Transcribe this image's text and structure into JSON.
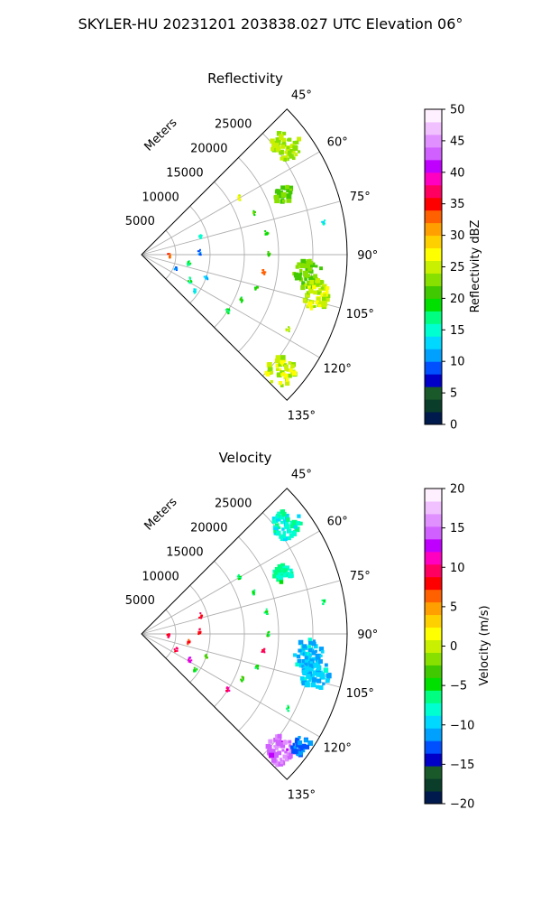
{
  "suptitle": "SKYLER-HU  20231201  203838.027 UTC Elevation 06°",
  "chart_data": [
    {
      "type": "heatmap",
      "projection": "polar-sector",
      "title": "Reflectivity",
      "range_axis_label": "Meters",
      "range_ticks": [
        "5000",
        "10000",
        "15000",
        "20000",
        "25000"
      ],
      "range_tick_values": [
        5000,
        10000,
        15000,
        20000,
        25000
      ],
      "range_max": 30000,
      "azimuth_range": [
        45,
        135
      ],
      "azimuth_ticks": [
        "45°",
        "60°",
        "75°",
        "90°",
        "105°",
        "120°",
        "135°"
      ],
      "azimuth_tick_values": [
        45,
        60,
        75,
        90,
        105,
        120,
        135
      ],
      "grid": true,
      "colorbar": {
        "label": "Reflectivity dBZ",
        "min": 0,
        "max": 50,
        "ticks": [
          "0",
          "5",
          "10",
          "15",
          "20",
          "25",
          "30",
          "35",
          "40",
          "45",
          "50"
        ],
        "tick_values": [
          0,
          5,
          10,
          15,
          20,
          25,
          30,
          35,
          40,
          45,
          50
        ],
        "colors": [
          "#001a4d",
          "#0a3d2a",
          "#1a5a2a",
          "#0000c8",
          "#0050ff",
          "#00a0ff",
          "#00d8ff",
          "#00ffd0",
          "#00ff80",
          "#00e000",
          "#40c800",
          "#88e000",
          "#c8f000",
          "#ffff00",
          "#ffd000",
          "#ffa000",
          "#ff6000",
          "#ff0000",
          "#ff0060",
          "#ff00c0",
          "#c000ff",
          "#d060ff",
          "#e090ff",
          "#f0c0ff",
          "#fff0ff"
        ]
      },
      "echoes": [
        {
          "az": 53,
          "r": 26500,
          "value": 24,
          "size": "large"
        },
        {
          "az": 67,
          "r": 22500,
          "value": 22,
          "size": "medium"
        },
        {
          "az": 80,
          "r": 27000,
          "value": 15,
          "size": "small"
        },
        {
          "az": 97,
          "r": 24500,
          "value": 22,
          "size": "large"
        },
        {
          "az": 103,
          "r": 26000,
          "value": 25,
          "size": "large"
        },
        {
          "az": 117,
          "r": 24000,
          "value": 24,
          "size": "small"
        },
        {
          "az": 130,
          "r": 26500,
          "value": 25,
          "size": "large"
        },
        {
          "az": 60,
          "r": 16500,
          "value": 26,
          "size": "small"
        },
        {
          "az": 70,
          "r": 17500,
          "value": 21,
          "size": "small"
        },
        {
          "az": 80,
          "r": 18500,
          "value": 20,
          "size": "small"
        },
        {
          "az": 90,
          "r": 18500,
          "value": 20,
          "size": "small"
        },
        {
          "az": 98,
          "r": 18000,
          "value": 33,
          "size": "small"
        },
        {
          "az": 106,
          "r": 17500,
          "value": 20,
          "size": "small"
        },
        {
          "az": 114,
          "r": 16000,
          "value": 19,
          "size": "small"
        },
        {
          "az": 123,
          "r": 15000,
          "value": 18,
          "size": "small"
        },
        {
          "az": 73,
          "r": 9000,
          "value": 15,
          "size": "small"
        },
        {
          "az": 88,
          "r": 8500,
          "value": 10,
          "size": "small"
        },
        {
          "az": 92,
          "r": 4000,
          "value": 33,
          "size": "small"
        },
        {
          "az": 100,
          "r": 7000,
          "value": 18,
          "size": "small"
        },
        {
          "az": 110,
          "r": 10000,
          "value": 12,
          "size": "small"
        },
        {
          "az": 114,
          "r": 5500,
          "value": 10,
          "size": "small"
        },
        {
          "az": 118,
          "r": 8000,
          "value": 17,
          "size": "small"
        },
        {
          "az": 124,
          "r": 9500,
          "value": 14,
          "size": "small"
        }
      ]
    },
    {
      "type": "heatmap",
      "projection": "polar-sector",
      "title": "Velocity",
      "range_axis_label": "Meters",
      "range_ticks": [
        "5000",
        "10000",
        "15000",
        "20000",
        "25000"
      ],
      "range_tick_values": [
        5000,
        10000,
        15000,
        20000,
        25000
      ],
      "range_max": 30000,
      "azimuth_range": [
        45,
        135
      ],
      "azimuth_ticks": [
        "45°",
        "60°",
        "75°",
        "90°",
        "105°",
        "120°",
        "135°"
      ],
      "azimuth_tick_values": [
        45,
        60,
        75,
        90,
        105,
        120,
        135
      ],
      "grid": true,
      "colorbar": {
        "label": "Velocity (m/s)",
        "min": -20,
        "max": 20,
        "ticks": [
          "−20",
          "−15",
          "−10",
          "−5",
          "0",
          "5",
          "10",
          "15",
          "20"
        ],
        "tick_values": [
          -20,
          -15,
          -10,
          -5,
          0,
          5,
          10,
          15,
          20
        ],
        "colors": [
          "#001a4d",
          "#0a3d2a",
          "#1a5a2a",
          "#0000c8",
          "#0050ff",
          "#00a0ff",
          "#00d8ff",
          "#00ffd0",
          "#00ff80",
          "#00e000",
          "#40c800",
          "#88e000",
          "#c8f000",
          "#ffff00",
          "#ffd000",
          "#ffa000",
          "#ff6000",
          "#ff0000",
          "#ff0060",
          "#ff00c0",
          "#c000ff",
          "#d060ff",
          "#e090ff",
          "#f0c0ff",
          "#fff0ff"
        ]
      },
      "echoes": [
        {
          "az": 53,
          "r": 26500,
          "value": -8,
          "size": "large"
        },
        {
          "az": 67,
          "r": 22500,
          "value": -7,
          "size": "medium"
        },
        {
          "az": 80,
          "r": 27000,
          "value": -6,
          "size": "small"
        },
        {
          "az": 97,
          "r": 24500,
          "value": -10,
          "size": "large"
        },
        {
          "az": 103,
          "r": 26000,
          "value": -10,
          "size": "large"
        },
        {
          "az": 117,
          "r": 24000,
          "value": -6,
          "size": "small"
        },
        {
          "az": 130,
          "r": 26500,
          "value": 15,
          "size": "large"
        },
        {
          "az": 125,
          "r": 28500,
          "value": -12,
          "size": "medium"
        },
        {
          "az": 60,
          "r": 16500,
          "value": -6,
          "size": "small"
        },
        {
          "az": 70,
          "r": 17500,
          "value": -5,
          "size": "small"
        },
        {
          "az": 80,
          "r": 18500,
          "value": -5,
          "size": "small"
        },
        {
          "az": 90,
          "r": 18500,
          "value": -5,
          "size": "small"
        },
        {
          "az": 98,
          "r": 18000,
          "value": 9,
          "size": "small"
        },
        {
          "az": 106,
          "r": 17500,
          "value": -5,
          "size": "small"
        },
        {
          "az": 114,
          "r": 16000,
          "value": -4,
          "size": "small"
        },
        {
          "az": 123,
          "r": 15000,
          "value": 10,
          "size": "small"
        },
        {
          "az": 73,
          "r": 9000,
          "value": 9,
          "size": "small"
        },
        {
          "az": 88,
          "r": 8500,
          "value": 8,
          "size": "small"
        },
        {
          "az": 92,
          "r": 4000,
          "value": 9,
          "size": "small"
        },
        {
          "az": 100,
          "r": 7000,
          "value": 8,
          "size": "small"
        },
        {
          "az": 110,
          "r": 10000,
          "value": -3,
          "size": "small"
        },
        {
          "az": 114,
          "r": 5500,
          "value": 10,
          "size": "small"
        },
        {
          "az": 118,
          "r": 8000,
          "value": 12,
          "size": "small"
        },
        {
          "az": 124,
          "r": 9500,
          "value": -5,
          "size": "small"
        }
      ]
    }
  ]
}
